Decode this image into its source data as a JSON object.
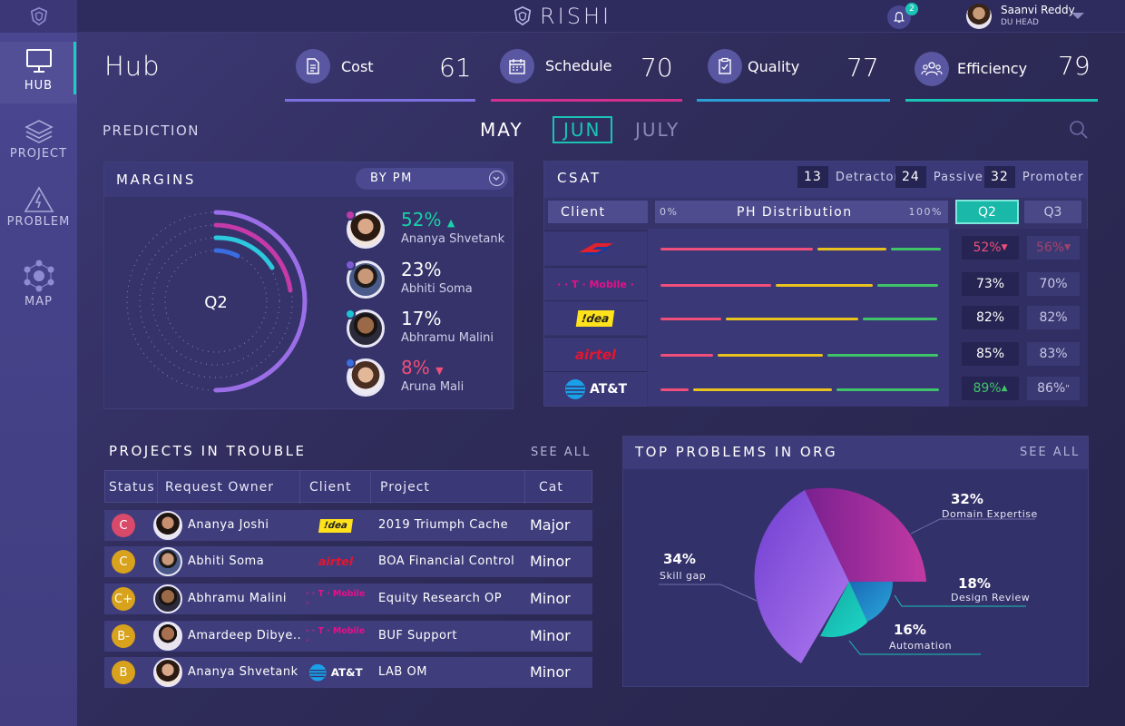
{
  "app": {
    "brand": "RISHI"
  },
  "user": {
    "name": "Saanvi Reddy",
    "role": "DU HEAD",
    "notifications": "2"
  },
  "sidebar": {
    "items": [
      {
        "label": "HUB",
        "icon": "monitor-icon",
        "active": true
      },
      {
        "label": "PROJECT",
        "icon": "layers-icon",
        "active": false
      },
      {
        "label": "PROBLEM",
        "icon": "warning-icon",
        "active": false
      },
      {
        "label": "MAP",
        "icon": "network-icon",
        "active": false
      }
    ]
  },
  "header": {
    "title": "Hub"
  },
  "metrics": [
    {
      "label": "Cost",
      "value": "61",
      "icon": "document-icon",
      "color": "#7c6fe0"
    },
    {
      "label": "Schedule",
      "value": "70",
      "icon": "calendar-icon",
      "color": "#d0308e"
    },
    {
      "label": "Quality",
      "value": "77",
      "icon": "clipboard-icon",
      "color": "#2a9fd6"
    },
    {
      "label": "Efficiency",
      "value": "79",
      "icon": "team-icon",
      "color": "#19c4b4"
    }
  ],
  "prediction": {
    "label": "PREDICTION",
    "months": [
      "MAY",
      "JUN",
      "JULY"
    ],
    "selected": "JUN"
  },
  "margins": {
    "title": "MARGINS",
    "filter": "BY PM",
    "center_label": "Q2",
    "people": [
      {
        "name": "Ananya Shvetank",
        "pct": "52%",
        "trend": "up",
        "dot": "#c13ba8",
        "color": "#19d0a8"
      },
      {
        "name": "Abhiti Soma",
        "pct": "23%",
        "trend": "",
        "dot": "#7e5ad6",
        "color": "#ffffff"
      },
      {
        "name": "Abhramu Malini",
        "pct": "17%",
        "trend": "",
        "dot": "#19c4d4",
        "color": "#ffffff"
      },
      {
        "name": "Aruna Mali",
        "pct": "8%",
        "trend": "down",
        "dot": "#3a6de0",
        "color": "#ef4f7a"
      }
    ]
  },
  "csat": {
    "title": "CSAT",
    "counts": [
      {
        "num": "13",
        "label": "Detractor"
      },
      {
        "num": "24",
        "label": "Passive"
      },
      {
        "num": "32",
        "label": "Promoter"
      }
    ],
    "columns": {
      "client": "Client",
      "min": "0%",
      "dist": "PH Distribution",
      "max": "100%",
      "q2": "Q2",
      "q3": "Q3"
    },
    "rows": [
      {
        "client": "Bank of America",
        "logo": "boa-logo-icon",
        "dist": [
          0.55,
          0.25,
          0.18
        ],
        "q2": "52%",
        "q2_trend": "down",
        "q3": "56%",
        "q3_trend": "down"
      },
      {
        "client": "T-Mobile",
        "logo": "tmobile-logo-icon",
        "dist": [
          0.4,
          0.35,
          0.22
        ],
        "q2": "73%",
        "q2_trend": "",
        "q3": "70%",
        "q3_trend": ""
      },
      {
        "client": "!dea",
        "logo": "idea-logo-icon",
        "dist": [
          0.22,
          0.48,
          0.27
        ],
        "q2": "82%",
        "q2_trend": "",
        "q3": "82%",
        "q3_trend": ""
      },
      {
        "client": "airtel",
        "logo": "airtel-logo-icon",
        "dist": [
          0.19,
          0.38,
          0.4
        ],
        "q2": "85%",
        "q2_trend": "",
        "q3": "83%",
        "q3_trend": ""
      },
      {
        "client": "AT&T",
        "logo": "att-logo-icon",
        "dist": [
          0.1,
          0.5,
          0.37
        ],
        "q2": "89%",
        "q2_trend": "up",
        "q3": "86%",
        "q3_trend": "flat"
      }
    ]
  },
  "projects": {
    "title": "PROJECTS IN TROUBLE",
    "see_all": "SEE ALL",
    "columns": [
      "Status",
      "Request Owner",
      "Client",
      "Project",
      "Cat"
    ],
    "rows": [
      {
        "status": "C",
        "status_color": "#d94a6a",
        "owner": "Ananya Joshi",
        "client": "!dea",
        "client_logo": "idea-logo-icon",
        "project": "2019 Triumph Cache",
        "cat": "Major"
      },
      {
        "status": "C",
        "status_color": "#d9a21c",
        "owner": "Abhiti Soma",
        "client": "airtel",
        "client_logo": "airtel-logo-icon",
        "project": "BOA Financial Control",
        "cat": "Minor"
      },
      {
        "status": "C+",
        "status_color": "#d9a21c",
        "owner": "Abhramu Malini",
        "client": "T-Mobile",
        "client_logo": "tmobile-logo-icon",
        "project": "Equity Research OP",
        "cat": "Minor"
      },
      {
        "status": "B-",
        "status_color": "#d9a21c",
        "owner": "Amardeep Dibye..",
        "client": "T-Mobile",
        "client_logo": "tmobile-logo-icon",
        "project": "BUF Support",
        "cat": "Minor"
      },
      {
        "status": "B",
        "status_color": "#d9a21c",
        "owner": "Ananya Shvetank",
        "client": "AT&T",
        "client_logo": "att-logo-icon",
        "project": "LAB OM",
        "cat": "Minor"
      }
    ]
  },
  "problems": {
    "title": "TOP PROBLEMS IN ORG",
    "see_all": "SEE ALL",
    "slices": [
      {
        "pct": "34%",
        "label": "Skill gap",
        "value": 34,
        "color": "#8e52e0"
      },
      {
        "pct": "32%",
        "label": "Domain Expertise",
        "value": 32,
        "color": "#a0309a"
      },
      {
        "pct": "18%",
        "label": "Design Review",
        "value": 18,
        "color": "#1f8ec8"
      },
      {
        "pct": "16%",
        "label": "Automation",
        "value": 16,
        "color": "#19c4b4"
      }
    ]
  }
}
